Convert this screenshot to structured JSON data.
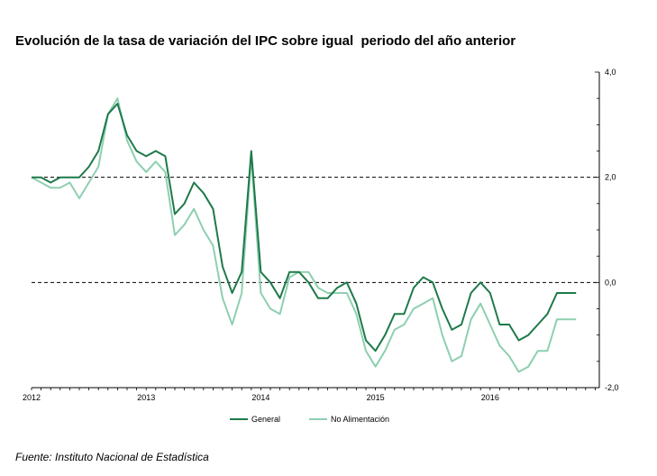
{
  "title": "Evolución de la tasa de variación del IPC sobre igual  periodo del año anterior",
  "source": "Fuente: Instituto Nacional de Estadística",
  "chart_data": {
    "type": "line",
    "xlabel": "",
    "ylabel": "",
    "x_tick_labels": [
      "2012",
      "2013",
      "2014",
      "2015",
      "2016"
    ],
    "y_tick_labels": [
      "4,0",
      "2,0",
      "0,0",
      "-2,0"
    ],
    "ylim": [
      -2,
      4
    ],
    "reference_lines": [
      2,
      0
    ],
    "months": [
      "2012-01",
      "2012-02",
      "2012-03",
      "2012-04",
      "2012-05",
      "2012-06",
      "2012-07",
      "2012-08",
      "2012-09",
      "2012-10",
      "2012-11",
      "2012-12",
      "2013-01",
      "2013-02",
      "2013-03",
      "2013-04",
      "2013-05",
      "2013-06",
      "2013-07",
      "2013-08",
      "2013-09",
      "2013-10",
      "2013-11",
      "2013-12",
      "2014-01",
      "2014-02",
      "2014-03",
      "2014-04",
      "2014-05",
      "2014-06",
      "2014-07",
      "2014-08",
      "2014-09",
      "2014-10",
      "2014-11",
      "2014-12",
      "2015-01",
      "2015-02",
      "2015-03",
      "2015-04",
      "2015-05",
      "2015-06",
      "2015-07",
      "2015-08",
      "2015-09",
      "2015-10",
      "2015-11",
      "2015-12",
      "2016-01",
      "2016-02",
      "2016-03",
      "2016-04",
      "2016-05",
      "2016-06",
      "2016-07",
      "2016-08",
      "2016-09",
      "2016-10"
    ],
    "series": [
      {
        "name": "General",
        "color": "#1e7a4a",
        "values": [
          2.0,
          2.0,
          1.9,
          2.0,
          2.0,
          2.0,
          2.2,
          2.5,
          3.2,
          3.4,
          2.8,
          2.5,
          2.4,
          2.5,
          2.4,
          1.3,
          1.5,
          1.9,
          1.7,
          1.4,
          0.3,
          -0.2,
          0.2,
          2.5,
          0.2,
          0.0,
          -0.3,
          0.2,
          0.2,
          0.0,
          -0.3,
          -0.3,
          -0.1,
          0.0,
          -0.4,
          -1.1,
          -1.3,
          -1.0,
          -0.6,
          -0.6,
          -0.1,
          0.1,
          0.0,
          -0.5,
          -0.9,
          -0.8,
          -0.2,
          0.0,
          -0.2,
          -0.8,
          -0.8,
          -1.1,
          -1.0,
          -0.8,
          -0.6,
          -0.2,
          -0.2,
          -0.2
        ]
      },
      {
        "name": "No Alimentación",
        "color": "#8ecfb0",
        "values": [
          2.0,
          1.9,
          1.8,
          1.8,
          1.9,
          1.6,
          1.9,
          2.2,
          3.2,
          3.5,
          2.7,
          2.3,
          2.1,
          2.3,
          2.1,
          0.9,
          1.1,
          1.4,
          1.0,
          0.7,
          -0.3,
          -0.8,
          -0.2,
          2.4,
          -0.2,
          -0.5,
          -0.6,
          0.1,
          0.2,
          0.2,
          -0.1,
          -0.2,
          -0.2,
          -0.2,
          -0.6,
          -1.3,
          -1.6,
          -1.3,
          -0.9,
          -0.8,
          -0.5,
          -0.4,
          -0.3,
          -1.0,
          -1.5,
          -1.4,
          -0.7,
          -0.4,
          -0.8,
          -1.2,
          -1.4,
          -1.7,
          -1.6,
          -1.3,
          -1.3,
          -0.7,
          -0.7,
          -0.7
        ]
      }
    ],
    "grid": false,
    "legend_position": "bottom"
  }
}
